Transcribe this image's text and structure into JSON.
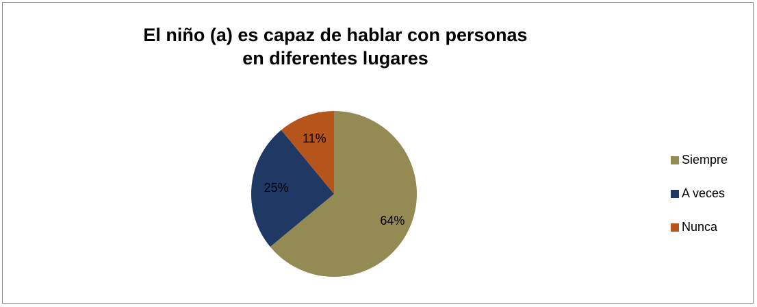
{
  "chart_data": {
    "type": "pie",
    "title": "El niño (a) es capaz de hablar con personas en diferentes lugares",
    "categories": [
      "Siempre",
      "A veces",
      "Nunca"
    ],
    "values": [
      64,
      25,
      11
    ],
    "value_labels": [
      "64%",
      "25%",
      "11%"
    ],
    "colors": [
      "#948a54",
      "#1f3864",
      "#b5541b"
    ],
    "legend": "right"
  }
}
